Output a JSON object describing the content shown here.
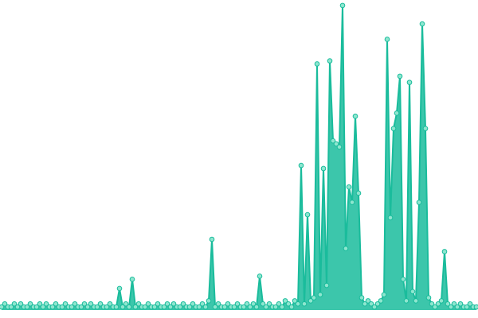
{
  "chart_data": {
    "type": "area",
    "color": "#1abc9c",
    "marker_fill": "#8ee6cf",
    "ylim": [
      0,
      100
    ],
    "values": [
      1,
      2,
      1,
      1,
      2,
      1,
      2,
      1,
      1,
      2,
      1,
      1,
      2,
      1,
      2,
      1,
      1,
      2,
      1,
      1,
      2,
      1,
      1,
      2,
      1,
      1,
      2,
      1,
      2,
      1,
      1,
      2,
      1,
      1,
      2,
      1,
      1,
      7,
      1,
      2,
      1,
      10,
      1,
      2,
      1,
      1,
      2,
      1,
      1,
      2,
      1,
      1,
      2,
      1,
      2,
      1,
      1,
      2,
      1,
      1,
      2,
      1,
      1,
      2,
      1,
      3,
      23,
      1,
      2,
      1,
      1,
      2,
      1,
      1,
      2,
      1,
      1,
      2,
      1,
      2,
      1,
      11,
      2,
      1,
      2,
      1,
      1,
      2,
      1,
      3,
      2,
      1,
      3,
      2,
      47,
      2,
      31,
      3,
      4,
      80,
      5,
      46,
      8,
      81,
      55,
      54,
      53,
      99,
      20,
      40,
      35,
      63,
      38,
      4,
      2,
      3,
      2,
      1,
      2,
      3,
      5,
      88,
      30,
      59,
      64,
      76,
      10,
      3,
      74,
      6,
      3,
      35,
      93,
      59,
      4,
      2,
      1,
      2,
      3,
      19,
      2,
      1,
      2,
      1,
      2,
      1,
      1,
      2,
      1,
      1
    ]
  }
}
